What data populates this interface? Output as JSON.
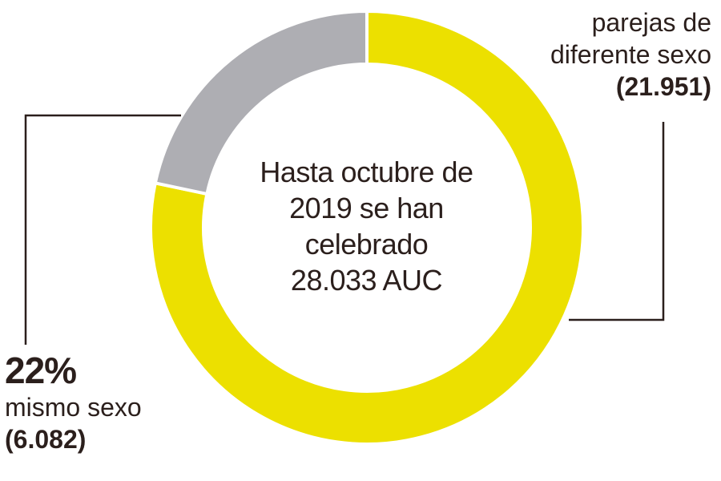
{
  "chart_data": {
    "type": "pie",
    "donut": true,
    "center_text": [
      "Hasta octubre de",
      "2019 se han",
      "celebrado",
      "28.033 AUC"
    ],
    "slices": [
      {
        "label_lines": [
          "parejas de",
          "diferente sexo"
        ],
        "value": 21951,
        "value_label": "(21.951)",
        "color": "#ECE000"
      },
      {
        "label_lines": [
          "mismo sexo"
        ],
        "percent_label": "22%",
        "value": 6082,
        "value_label": "(6.082)",
        "color": "#AEAEB3"
      }
    ],
    "leader_color": "#2b1f1c"
  }
}
